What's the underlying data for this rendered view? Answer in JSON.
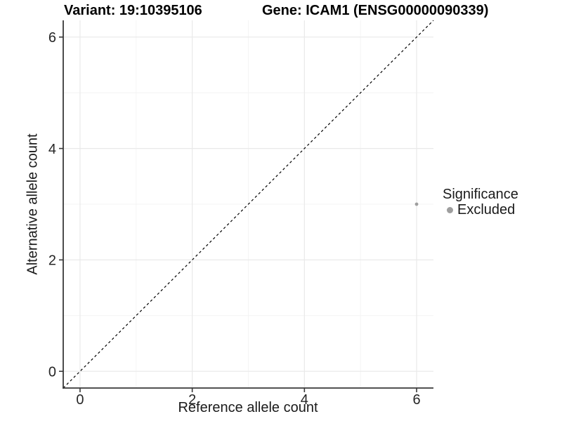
{
  "titles": {
    "variant": "Variant: 19:10395106",
    "gene": "Gene: ICAM1 (ENSG00000090339)"
  },
  "chart_data": {
    "type": "scatter",
    "points": [
      {
        "x": 6,
        "y": 3,
        "series": "Excluded"
      }
    ],
    "xlabel": "Reference allele count",
    "ylabel": "Alternative allele count",
    "xlim": [
      -0.3,
      6.3
    ],
    "ylim": [
      -0.3,
      6.3
    ],
    "xticks": [
      0,
      2,
      4,
      6
    ],
    "yticks": [
      0,
      2,
      4,
      6
    ],
    "xminor": [
      1,
      3,
      5
    ],
    "yminor": [
      1,
      3,
      5
    ],
    "grid": true,
    "abline": {
      "slope": 1,
      "intercept": 0,
      "style": "dashed"
    },
    "legend": {
      "title": "Significance",
      "position": "right",
      "items": [
        {
          "label": "Excluded",
          "color": "#9e9e9e"
        }
      ]
    },
    "colors": {
      "background": "#ffffff",
      "point": "#9e9e9e",
      "grid_major": "#e9e9e9",
      "grid_minor": "#f4f4f4",
      "axis_line": "#383838",
      "axis_text": "#262626",
      "abline": "#000000"
    }
  }
}
